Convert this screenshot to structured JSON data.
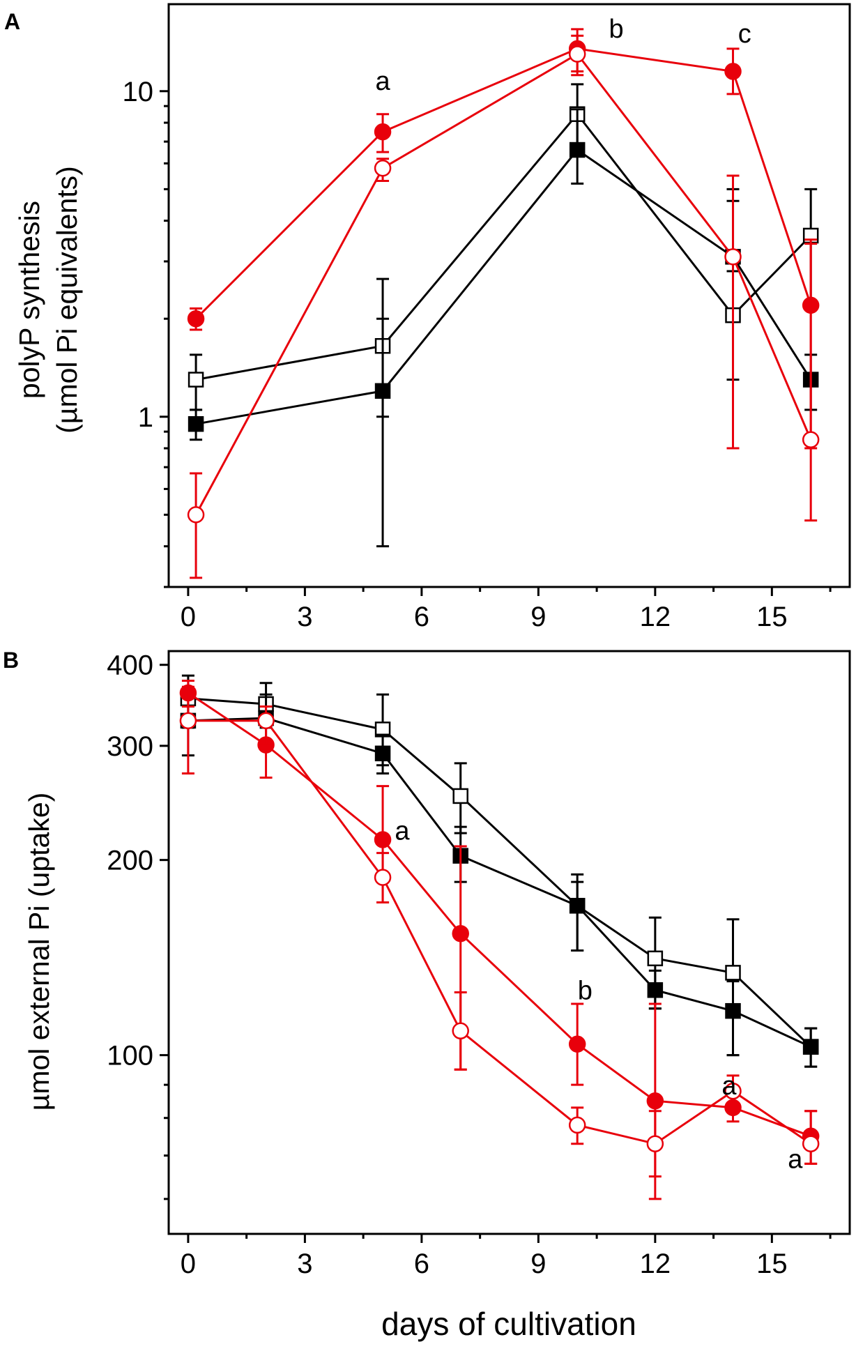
{
  "colors": {
    "black": "#000000",
    "red": "#e8000b",
    "white": "#ffffff"
  },
  "x_axis_label": "days of cultivation",
  "chart_data": [
    {
      "panel": "A",
      "type": "line",
      "y_scale": "log",
      "ylabel_line1": "polyP synthesis",
      "ylabel_line2": "(µmol Pi equivalents)",
      "xlim": [
        -0.5,
        17
      ],
      "ylim": [
        0.3,
        18.5
      ],
      "x_ticks": [
        0,
        3,
        6,
        9,
        12,
        15
      ],
      "x_tick_labels": [
        "0",
        "3",
        "6",
        "9",
        "12",
        "15"
      ],
      "y_ticks": [
        1,
        10
      ],
      "y_tick_labels": [
        "1",
        "10"
      ],
      "series": [
        {
          "name": "open squares",
          "color": "#000000",
          "marker": "square",
          "filled": false,
          "x": [
            0.2,
            5,
            10,
            14,
            16
          ],
          "y": [
            1.3,
            1.65,
            8.5,
            2.05,
            3.6
          ],
          "err": [
            [
              1.05,
              1.55
            ],
            [
              1.0,
              2.65
            ],
            [
              6.8,
              10.5
            ],
            [
              1.3,
              5.0
            ],
            [
              2.2,
              5.0
            ]
          ]
        },
        {
          "name": "filled squares",
          "color": "#000000",
          "marker": "square",
          "filled": true,
          "x": [
            0.2,
            5,
            10,
            14,
            16
          ],
          "y": [
            0.95,
            1.2,
            6.6,
            3.1,
            1.3
          ],
          "err": [
            [
              0.85,
              1.05
            ],
            [
              0.4,
              2.0
            ],
            [
              5.2,
              8.8
            ],
            [
              2.8,
              4.6
            ],
            [
              1.05,
              1.55
            ]
          ]
        },
        {
          "name": "filled circles",
          "color": "#e8000b",
          "marker": "circle",
          "filled": true,
          "x": [
            0.2,
            5,
            10,
            14,
            16
          ],
          "y": [
            2.0,
            7.5,
            13.5,
            11.5,
            2.2
          ],
          "err": [
            [
              1.85,
              2.15
            ],
            [
              6.5,
              8.5
            ],
            [
              11.5,
              15.5
            ],
            [
              9.8,
              13.5
            ],
            [
              0.8,
              3.5
            ]
          ]
        },
        {
          "name": "open circles",
          "color": "#e8000b",
          "marker": "circle",
          "filled": false,
          "x": [
            0.2,
            5,
            10,
            14,
            16
          ],
          "y": [
            0.5,
            5.8,
            13.0,
            3.1,
            0.85
          ],
          "err": [
            [
              0.32,
              0.67
            ],
            [
              5.3,
              6.2
            ],
            [
              11.2,
              14.8
            ],
            [
              0.8,
              5.5
            ],
            [
              0.48,
              3.4
            ]
          ]
        }
      ],
      "annotations": [
        {
          "text": "a",
          "x": 5,
          "y": 10.1
        },
        {
          "text": "b",
          "x": 11,
          "y": 14.6
        },
        {
          "text": "c",
          "x": 14.3,
          "y": 14.1
        }
      ]
    },
    {
      "panel": "B",
      "type": "line",
      "y_scale": "log",
      "ylabel_line1": "µmol external Pi (uptake)",
      "xlim": [
        -0.5,
        17
      ],
      "ylim": [
        53,
        420
      ],
      "x_ticks": [
        0,
        3,
        6,
        9,
        12,
        15
      ],
      "x_tick_labels": [
        "0",
        "3",
        "6",
        "9",
        "12",
        "15"
      ],
      "y_ticks": [
        100,
        200,
        300,
        400
      ],
      "y_tick_labels": [
        "100",
        "200",
        "300",
        "400"
      ],
      "series": [
        {
          "name": "open squares",
          "color": "#000000",
          "marker": "square",
          "filled": false,
          "x": [
            0,
            2,
            5,
            7,
            10,
            12,
            14,
            16
          ],
          "y": [
            355,
            348,
            318,
            251,
            170,
            141,
            134,
            103
          ],
          "err": [
            [
              320,
              385
            ],
            [
              320,
              375
            ],
            [
              280,
              360
            ],
            [
              220,
              282
            ],
            [
              145,
              190
            ],
            [
              118,
              163
            ],
            [
              100,
              162
            ],
            [
              96,
              110
            ]
          ]
        },
        {
          "name": "filled squares",
          "color": "#000000",
          "marker": "square",
          "filled": true,
          "x": [
            0,
            2,
            5,
            7,
            10,
            12,
            14,
            16
          ],
          "y": [
            328,
            331,
            292,
            203,
            170,
            126,
            117,
            103
          ],
          "err": [
            [
              290,
              360
            ],
            [
              300,
              360
            ],
            [
              272,
              312
            ],
            [
              185,
              225
            ],
            [
              145,
              185
            ],
            [
              118,
              135
            ],
            [
              100,
              130
            ],
            [
              96,
              110
            ]
          ]
        },
        {
          "name": "filled circles",
          "color": "#e8000b",
          "marker": "circle",
          "filled": true,
          "x": [
            0,
            2,
            5,
            7,
            10,
            12,
            14,
            16
          ],
          "y": [
            362,
            301,
            215,
            154,
            104,
            85,
            83,
            75
          ],
          "err": [
            [
              345,
              378
            ],
            [
              268,
              325
            ],
            [
              172,
              260
            ],
            [
              95,
              210
            ],
            [
              90,
              120
            ],
            [
              60,
              120
            ],
            [
              79,
              87
            ],
            [
              68,
              82
            ]
          ]
        },
        {
          "name": "open circles",
          "color": "#e8000b",
          "marker": "circle",
          "filled": false,
          "x": [
            0,
            2,
            5,
            7,
            10,
            12,
            14,
            16
          ],
          "y": [
            328,
            328,
            188,
            109,
            78,
            73,
            88,
            73
          ],
          "err": [
            [
              272,
              370
            ],
            [
              300,
              345
            ],
            [
              172,
              205
            ],
            [
              95,
              125
            ],
            [
              73,
              83
            ],
            [
              65,
              82
            ],
            [
              84,
              93
            ],
            [
              68,
              82
            ]
          ]
        }
      ],
      "annotations": [
        {
          "text": "a",
          "x": 5.5,
          "y": 215
        },
        {
          "text": "b",
          "x": 10.2,
          "y": 122
        },
        {
          "text": "a",
          "x": 13.9,
          "y": 87
        },
        {
          "text": "a",
          "x": 15.6,
          "y": 67
        }
      ]
    }
  ]
}
